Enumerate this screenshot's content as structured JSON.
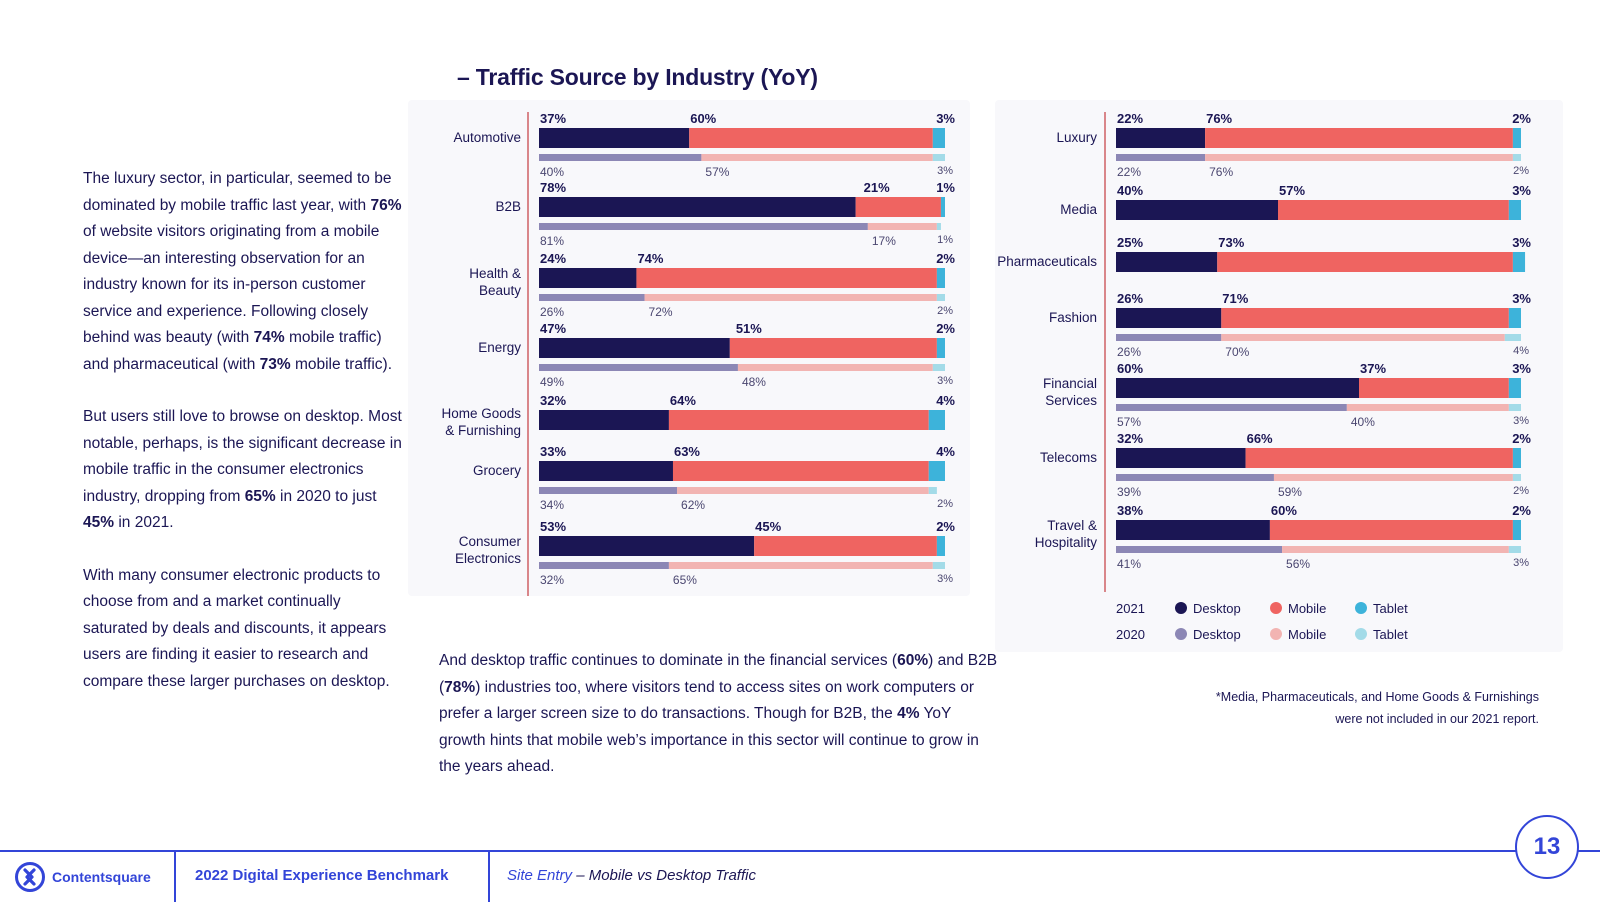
{
  "title": "– Traffic Source by Industry (YoY)",
  "left_text": [
    [
      {
        "t": "The luxury sector, in particular, seemed to be dominated by mobile traffic last year, with "
      },
      {
        "t": "76%",
        "b": true
      },
      {
        "t": " of website visitors originating from a mobile device—an interesting observation for an industry known for its in-person customer service and experience. Following closely behind was beauty (with "
      },
      {
        "t": "74%",
        "b": true
      },
      {
        "t": " mobile traffic) and pharmaceutical (with "
      },
      {
        "t": "73%",
        "b": true
      },
      {
        "t": " mobile traffic)."
      }
    ],
    [
      {
        "t": "But users still love to browse on desktop. Most notable, perhaps, is the significant decrease in mobile traffic in the consumer electronics industry, dropping from "
      },
      {
        "t": "65%",
        "b": true
      },
      {
        "t": " in 2020 to just "
      },
      {
        "t": "45%",
        "b": true
      },
      {
        "t": " in 2021."
      }
    ],
    [
      {
        "t": "With many consumer electronic products to choose from and a market continually saturated by deals and discounts, it appears users are finding it easier to research and compare these larger purchases on desktop."
      }
    ]
  ],
  "mid_text": [
    [
      {
        "t": "And desktop traffic continues to dominate in the financial services ("
      },
      {
        "t": "60%",
        "b": true
      },
      {
        "t": ") and B2B ("
      },
      {
        "t": "78%",
        "b": true
      },
      {
        "t": ") industries too, where visitors tend to access sites on work computers or prefer a larger screen size to do transactions. Though for B2B, the "
      },
      {
        "t": "4%",
        "b": true
      },
      {
        "t": " YoY growth hints that mobile web’s importance in this sector will continue to grow in the years ahead."
      }
    ]
  ],
  "colors": {
    "desktop_2021": "#1b1654",
    "mobile_2021": "#ef6461",
    "tablet_2021": "#3db3da",
    "desktop_2020": "#8c87b5",
    "mobile_2020": "#f2b4b2",
    "tablet_2020": "#a3dbe8",
    "axis": "#d9868a"
  },
  "chart_data": [
    {
      "type": "bar",
      "orientation": "horizontal",
      "stacked": true,
      "title": "Traffic Source by Industry (YoY) – left panel",
      "categories": [
        "Automotive",
        "B2B",
        "Health & Beauty",
        "Energy",
        "Home Goods & Furnishing",
        "Grocery",
        "Consumer Electronics"
      ],
      "series_2021": [
        {
          "name": "Desktop",
          "year": "2021",
          "values": [
            37,
            78,
            24,
            47,
            32,
            33,
            53
          ]
        },
        {
          "name": "Mobile",
          "year": "2021",
          "values": [
            60,
            21,
            74,
            51,
            64,
            63,
            45
          ]
        },
        {
          "name": "Tablet",
          "year": "2021",
          "values": [
            3,
            1,
            2,
            2,
            4,
            4,
            2
          ]
        }
      ],
      "series_2020": [
        {
          "name": "Desktop",
          "year": "2020",
          "values": [
            40,
            81,
            26,
            49,
            null,
            34,
            32
          ]
        },
        {
          "name": "Mobile",
          "year": "2020",
          "values": [
            57,
            17,
            72,
            48,
            null,
            62,
            65
          ]
        },
        {
          "name": "Tablet",
          "year": "2020",
          "values": [
            3,
            1,
            2,
            3,
            null,
            2,
            3
          ]
        }
      ],
      "xlim": [
        0,
        100
      ]
    },
    {
      "type": "bar",
      "orientation": "horizontal",
      "stacked": true,
      "title": "Traffic Source by Industry (YoY) – right panel",
      "categories": [
        "Luxury",
        "Media",
        "Pharmaceuticals",
        "Fashion",
        "Financial Services",
        "Telecoms",
        "Travel & Hospitality"
      ],
      "series_2021": [
        {
          "name": "Desktop",
          "year": "2021",
          "values": [
            22,
            40,
            25,
            26,
            60,
            32,
            38
          ]
        },
        {
          "name": "Mobile",
          "year": "2021",
          "values": [
            76,
            57,
            73,
            71,
            37,
            66,
            60
          ]
        },
        {
          "name": "Tablet",
          "year": "2021",
          "values": [
            2,
            3,
            3,
            3,
            3,
            2,
            2
          ]
        }
      ],
      "series_2020": [
        {
          "name": "Desktop",
          "year": "2020",
          "values": [
            22,
            null,
            null,
            26,
            57,
            39,
            41
          ]
        },
        {
          "name": "Mobile",
          "year": "2020",
          "values": [
            76,
            null,
            null,
            70,
            40,
            59,
            56
          ]
        },
        {
          "name": "Tablet",
          "year": "2020",
          "values": [
            2,
            null,
            null,
            4,
            3,
            2,
            3
          ]
        }
      ],
      "xlim": [
        0,
        100
      ]
    }
  ],
  "legend": {
    "rows": [
      {
        "year": "2021",
        "items": [
          "Desktop",
          "Mobile",
          "Tablet"
        ]
      },
      {
        "year": "2020",
        "items": [
          "Desktop",
          "Mobile",
          "Tablet"
        ]
      }
    ]
  },
  "footnote": [
    "*Media, Pharmaceuticals, and Home Goods & Furnishings",
    "were not included in our 2021 report."
  ],
  "footer": {
    "brand": "Contentsquare",
    "report": "2022 Digital Experience Benchmark",
    "section_part1": "Site Entry",
    "section_part2": " – Mobile vs Desktop Traffic",
    "page_number": "13"
  }
}
